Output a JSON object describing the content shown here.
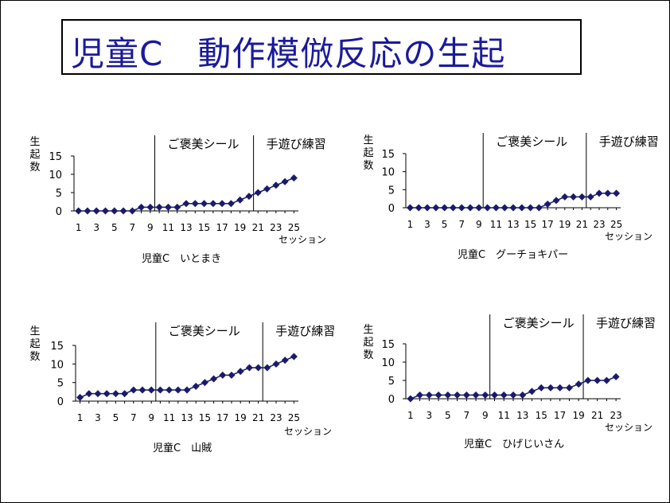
{
  "page": {
    "title": "児童C　動作模倣反応の生起"
  },
  "chart_data": [
    {
      "type": "line",
      "subtitle": "児童C　いとまき",
      "ylabel": [
        "生",
        "起",
        "数"
      ],
      "xlabel": "セッション",
      "ylim": [
        0,
        15
      ],
      "yticks": [
        0,
        5,
        10,
        15
      ],
      "xticks": [
        1,
        3,
        5,
        7,
        9,
        11,
        13,
        15,
        17,
        19,
        21,
        23,
        25
      ],
      "x": [
        1,
        2,
        3,
        4,
        5,
        6,
        7,
        8,
        9,
        10,
        11,
        12,
        13,
        14,
        15,
        16,
        17,
        18,
        19,
        20,
        21,
        22,
        23,
        24,
        25
      ],
      "values": [
        0,
        0,
        0,
        0,
        0,
        0,
        0,
        1,
        1,
        1,
        1,
        1,
        2,
        2,
        2,
        2,
        2,
        2,
        3,
        4,
        5,
        6,
        7,
        8,
        9
      ],
      "phase_lines": [
        9.5,
        20.5
      ],
      "phase_labels": [
        {
          "at": 9.5,
          "text": "ご褒美シール"
        },
        {
          "at": 20.5,
          "text": "手遊び練習"
        }
      ],
      "grid": false
    },
    {
      "type": "line",
      "subtitle": "児童C　グーチョキパー",
      "ylabel": [
        "生",
        "起",
        "数"
      ],
      "xlabel": "セッション",
      "ylim": [
        0,
        15
      ],
      "yticks": [
        0,
        5,
        10,
        15
      ],
      "xticks": [
        1,
        3,
        5,
        7,
        9,
        11,
        13,
        15,
        17,
        19,
        21,
        23,
        25
      ],
      "x": [
        1,
        2,
        3,
        4,
        5,
        6,
        7,
        8,
        9,
        10,
        11,
        12,
        13,
        14,
        15,
        16,
        17,
        18,
        19,
        20,
        21,
        22,
        23,
        24,
        25
      ],
      "values": [
        0,
        0,
        0,
        0,
        0,
        0,
        0,
        0,
        0,
        0,
        0,
        0,
        0,
        0,
        0,
        0,
        1,
        2,
        3,
        3,
        3,
        3,
        4,
        4,
        4
      ],
      "phase_lines": [
        9.5,
        21.5
      ],
      "phase_labels": [
        {
          "at": 9.5,
          "text": "ご褒美シール"
        },
        {
          "at": 21.5,
          "text": "手遊び練習"
        }
      ],
      "grid": false
    },
    {
      "type": "line",
      "subtitle": "児童C　山賊",
      "ylabel": [
        "生",
        "起",
        "数"
      ],
      "xlabel": "セッション",
      "ylim": [
        0,
        15
      ],
      "yticks": [
        0,
        5,
        10,
        15
      ],
      "xticks": [
        1,
        3,
        5,
        7,
        9,
        11,
        13,
        15,
        17,
        19,
        21,
        23,
        25
      ],
      "x": [
        1,
        2,
        3,
        4,
        5,
        6,
        7,
        8,
        9,
        10,
        11,
        12,
        13,
        14,
        15,
        16,
        17,
        18,
        19,
        20,
        21,
        22,
        23,
        24,
        25
      ],
      "values": [
        1,
        2,
        2,
        2,
        2,
        2,
        3,
        3,
        3,
        3,
        3,
        3,
        3,
        4,
        5,
        6,
        7,
        7,
        8,
        9,
        9,
        9,
        10,
        11,
        12
      ],
      "phase_lines": [
        9.5,
        21.5
      ],
      "phase_labels": [
        {
          "at": 9.5,
          "text": "ご褒美シール"
        },
        {
          "at": 21.5,
          "text": "手遊び練習"
        }
      ],
      "grid": false
    },
    {
      "type": "line",
      "subtitle": "児童C　ひげじいさん",
      "ylabel": [
        "生",
        "起",
        "数"
      ],
      "xlabel": "セッション",
      "ylim": [
        0,
        15
      ],
      "yticks": [
        0,
        5,
        10,
        15
      ],
      "xticks": [
        1,
        3,
        5,
        7,
        9,
        11,
        13,
        15,
        17,
        19,
        21,
        23
      ],
      "x": [
        1,
        2,
        3,
        4,
        5,
        6,
        7,
        8,
        9,
        10,
        11,
        12,
        13,
        14,
        15,
        16,
        17,
        18,
        19,
        20,
        21,
        22,
        23
      ],
      "values": [
        0,
        1,
        1,
        1,
        1,
        1,
        1,
        1,
        1,
        1,
        1,
        1,
        1,
        2,
        3,
        3,
        3,
        3,
        4,
        5,
        5,
        5,
        6
      ],
      "phase_lines": [
        9.5,
        19.5
      ],
      "phase_labels": [
        {
          "at": 9.5,
          "text": "ご褒美シール"
        },
        {
          "at": 19.5,
          "text": "手遊び練習"
        }
      ],
      "grid": false
    }
  ],
  "colors": {
    "marker": "#1a1a6c",
    "line": "#1a1a6c",
    "axis": "#000000",
    "title": "#1a1a9c"
  }
}
